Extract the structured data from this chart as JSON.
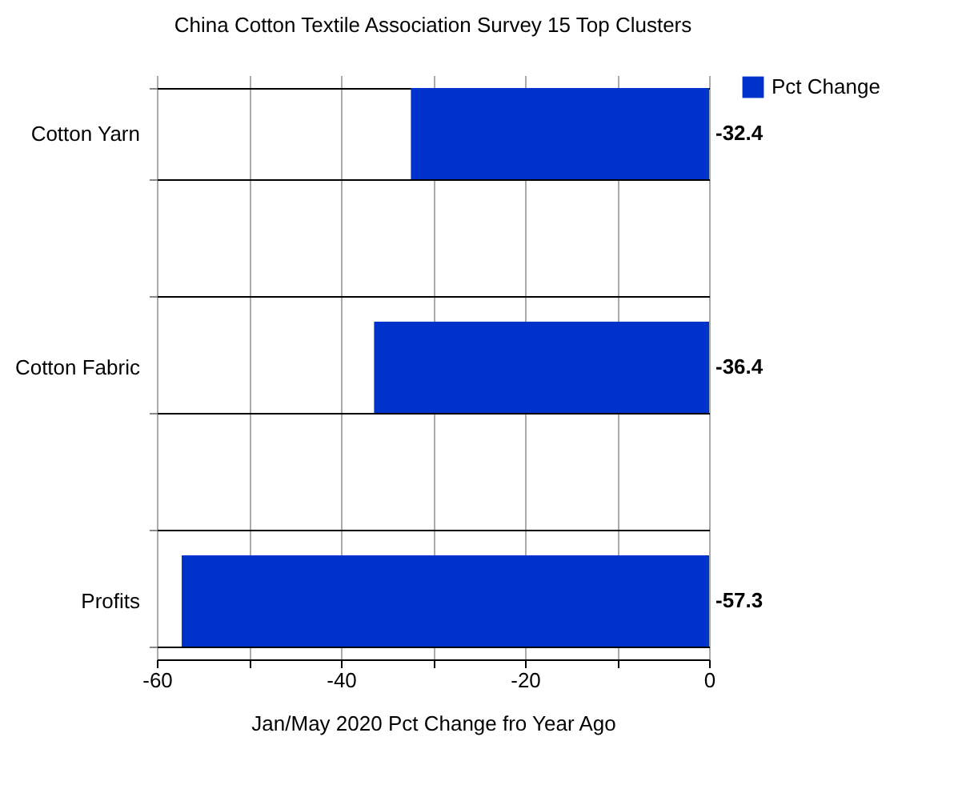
{
  "chart_data": {
    "type": "bar",
    "orientation": "horizontal",
    "title": "China Cotton Textile Association Survey 15 Top Clusters",
    "xlabel": "Jan/May 2020 Pct Change fro Year Ago",
    "categories": [
      "Cotton Yarn",
      null,
      "Cotton Fabric",
      null,
      "Profits"
    ],
    "series": [
      {
        "name": "Pct Change",
        "color": "#0033cc",
        "values": [
          -32.4,
          null,
          -36.4,
          null,
          -57.3
        ]
      }
    ],
    "xlim": [
      -60,
      0
    ],
    "xticks": [
      -60,
      {
        "value": -50,
        "label": null
      },
      -40,
      {
        "value": -30,
        "label": null
      },
      -20,
      {
        "value": -10,
        "label": null
      },
      0
    ],
    "grid": true,
    "legend": "right",
    "data_labels": true
  }
}
